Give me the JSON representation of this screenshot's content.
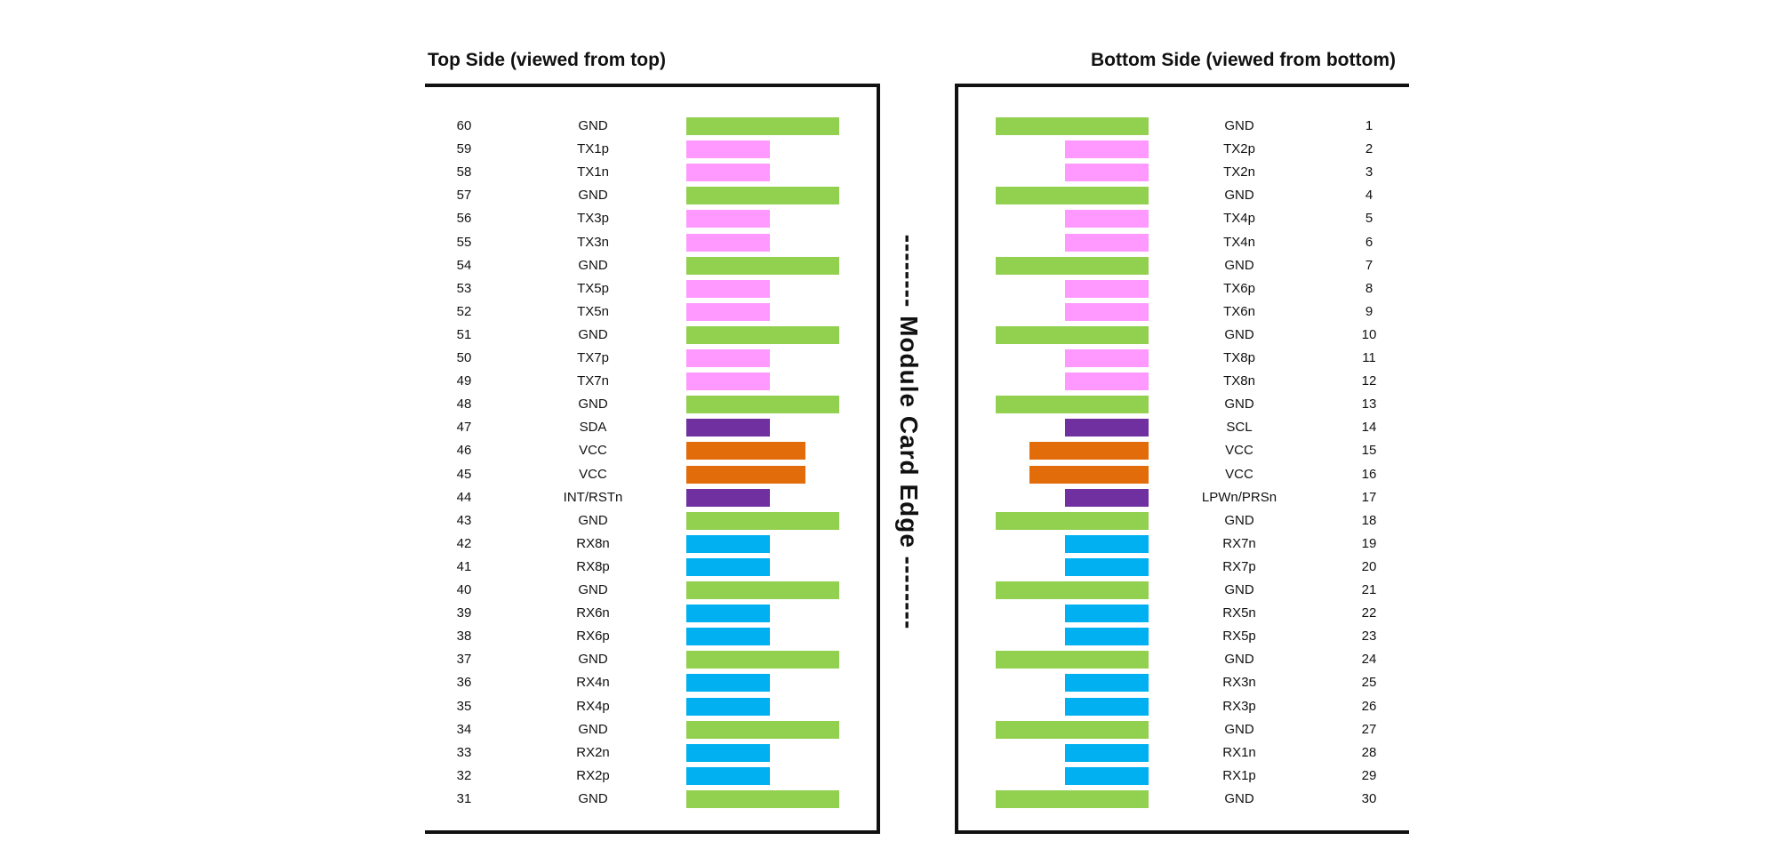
{
  "colors": {
    "GND": "#92d050",
    "TX": "#ff99ff",
    "RX": "#00b0f0",
    "CTRL": "#7030a0",
    "VCC": "#e36c0a"
  },
  "top_side": {
    "title": "Top Side (viewed from top)",
    "pins": [
      {
        "num": "60",
        "name": "GND",
        "type": "GND"
      },
      {
        "num": "59",
        "name": "TX1p",
        "type": "TX"
      },
      {
        "num": "58",
        "name": "TX1n",
        "type": "TX"
      },
      {
        "num": "57",
        "name": "GND",
        "type": "GND"
      },
      {
        "num": "56",
        "name": "TX3p",
        "type": "TX"
      },
      {
        "num": "55",
        "name": "TX3n",
        "type": "TX"
      },
      {
        "num": "54",
        "name": "GND",
        "type": "GND"
      },
      {
        "num": "53",
        "name": "TX5p",
        "type": "TX"
      },
      {
        "num": "52",
        "name": "TX5n",
        "type": "TX"
      },
      {
        "num": "51",
        "name": "GND",
        "type": "GND"
      },
      {
        "num": "50",
        "name": "TX7p",
        "type": "TX"
      },
      {
        "num": "49",
        "name": "TX7n",
        "type": "TX"
      },
      {
        "num": "48",
        "name": "GND",
        "type": "GND"
      },
      {
        "num": "47",
        "name": "SDA",
        "type": "CTRL"
      },
      {
        "num": "46",
        "name": "VCC",
        "type": "VCC"
      },
      {
        "num": "45",
        "name": "VCC",
        "type": "VCC"
      },
      {
        "num": "44",
        "name": "INT/RSTn",
        "type": "CTRL"
      },
      {
        "num": "43",
        "name": "GND",
        "type": "GND"
      },
      {
        "num": "42",
        "name": "RX8n",
        "type": "RX"
      },
      {
        "num": "41",
        "name": "RX8p",
        "type": "RX"
      },
      {
        "num": "40",
        "name": "GND",
        "type": "GND"
      },
      {
        "num": "39",
        "name": "RX6n",
        "type": "RX"
      },
      {
        "num": "38",
        "name": "RX6p",
        "type": "RX"
      },
      {
        "num": "37",
        "name": "GND",
        "type": "GND"
      },
      {
        "num": "36",
        "name": "RX4n",
        "type": "RX"
      },
      {
        "num": "35",
        "name": "RX4p",
        "type": "RX"
      },
      {
        "num": "34",
        "name": "GND",
        "type": "GND"
      },
      {
        "num": "33",
        "name": "RX2n",
        "type": "RX"
      },
      {
        "num": "32",
        "name": "RX2p",
        "type": "RX"
      },
      {
        "num": "31",
        "name": "GND",
        "type": "GND"
      }
    ]
  },
  "edge_label": "-------- Module Card Edge --------",
  "bottom_side": {
    "title": "Bottom Side (viewed from bottom)",
    "pins": [
      {
        "num": "1",
        "name": "GND",
        "type": "GND"
      },
      {
        "num": "2",
        "name": "TX2p",
        "type": "TX"
      },
      {
        "num": "3",
        "name": "TX2n",
        "type": "TX"
      },
      {
        "num": "4",
        "name": "GND",
        "type": "GND"
      },
      {
        "num": "5",
        "name": "TX4p",
        "type": "TX"
      },
      {
        "num": "6",
        "name": "TX4n",
        "type": "TX"
      },
      {
        "num": "7",
        "name": "GND",
        "type": "GND"
      },
      {
        "num": "8",
        "name": "TX6p",
        "type": "TX"
      },
      {
        "num": "9",
        "name": "TX6n",
        "type": "TX"
      },
      {
        "num": "10",
        "name": "GND",
        "type": "GND"
      },
      {
        "num": "11",
        "name": "TX8p",
        "type": "TX"
      },
      {
        "num": "12",
        "name": "TX8n",
        "type": "TX"
      },
      {
        "num": "13",
        "name": "GND",
        "type": "GND"
      },
      {
        "num": "14",
        "name": "SCL",
        "type": "CTRL"
      },
      {
        "num": "15",
        "name": "VCC",
        "type": "VCC"
      },
      {
        "num": "16",
        "name": "VCC",
        "type": "VCC"
      },
      {
        "num": "17",
        "name": "LPWn/PRSn",
        "type": "CTRL"
      },
      {
        "num": "18",
        "name": "GND",
        "type": "GND"
      },
      {
        "num": "19",
        "name": "RX7n",
        "type": "RX"
      },
      {
        "num": "20",
        "name": "RX7p",
        "type": "RX"
      },
      {
        "num": "21",
        "name": "GND",
        "type": "GND"
      },
      {
        "num": "22",
        "name": "RX5n",
        "type": "RX"
      },
      {
        "num": "23",
        "name": "RX5p",
        "type": "RX"
      },
      {
        "num": "24",
        "name": "GND",
        "type": "GND"
      },
      {
        "num": "25",
        "name": "RX3n",
        "type": "RX"
      },
      {
        "num": "26",
        "name": "RX3p",
        "type": "RX"
      },
      {
        "num": "27",
        "name": "GND",
        "type": "GND"
      },
      {
        "num": "28",
        "name": "RX1n",
        "type": "RX"
      },
      {
        "num": "29",
        "name": "RX1p",
        "type": "RX"
      },
      {
        "num": "30",
        "name": "GND",
        "type": "GND"
      }
    ]
  }
}
